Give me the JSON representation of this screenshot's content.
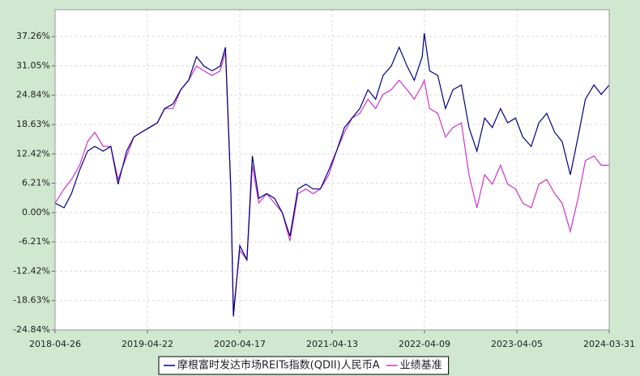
{
  "chart_data": {
    "type": "line",
    "x": [
      "2018-04-26",
      "2018-05-31",
      "2018-06-29",
      "2018-07-31",
      "2018-08-31",
      "2018-09-28",
      "2018-10-31",
      "2018-11-30",
      "2018-12-28",
      "2019-01-31",
      "2019-02-28",
      "2019-03-29",
      "2019-04-30",
      "2019-05-31",
      "2019-06-28",
      "2019-07-31",
      "2019-08-30",
      "2019-09-30",
      "2019-10-31",
      "2019-11-29",
      "2019-12-31",
      "2020-01-31",
      "2020-02-21",
      "2020-03-13",
      "2020-03-23",
      "2020-04-17",
      "2020-05-15",
      "2020-06-05",
      "2020-06-30",
      "2020-07-31",
      "2020-08-31",
      "2020-09-30",
      "2020-10-30",
      "2020-11-30",
      "2020-12-31",
      "2021-01-29",
      "2021-02-26",
      "2021-03-31",
      "2021-04-30",
      "2021-05-31",
      "2021-06-30",
      "2021-07-30",
      "2021-08-31",
      "2021-09-30",
      "2021-10-29",
      "2021-11-30",
      "2021-12-31",
      "2022-01-31",
      "2022-02-28",
      "2022-03-31",
      "2022-04-08",
      "2022-04-29",
      "2022-05-31",
      "2022-06-30",
      "2022-07-29",
      "2022-08-31",
      "2022-09-30",
      "2022-10-31",
      "2022-11-30",
      "2022-12-30",
      "2023-01-31",
      "2023-02-28",
      "2023-03-31",
      "2023-04-28",
      "2023-05-31",
      "2023-06-30",
      "2023-07-31",
      "2023-08-31",
      "2023-09-29",
      "2023-10-31",
      "2023-11-30",
      "2023-12-29",
      "2024-01-31",
      "2024-02-29",
      "2024-03-31"
    ],
    "series": [
      {
        "name": "摩根富时发达市场REITs指数(QDII)人民币A",
        "color": "#000080",
        "values": [
          2,
          1,
          4,
          9,
          13,
          14,
          13,
          14,
          6,
          13,
          16,
          17,
          18,
          19,
          22,
          23,
          26,
          28,
          33,
          31,
          30,
          31,
          35,
          5,
          -22,
          -7,
          -10,
          12,
          3,
          4,
          3,
          0,
          -5,
          5,
          6,
          5,
          5,
          9,
          13,
          18,
          20,
          22,
          26,
          24,
          29,
          31,
          35,
          31,
          28,
          33,
          38,
          30,
          29,
          22,
          26,
          27,
          18,
          13,
          20,
          18,
          22,
          19,
          20,
          16,
          14,
          19,
          21,
          17,
          15,
          8,
          16,
          24,
          27,
          25,
          27
        ]
      },
      {
        "name": "业绩基准",
        "color": "#cc33cc",
        "values": [
          2,
          5,
          7,
          10,
          15,
          17,
          14,
          14,
          7,
          12,
          16,
          17,
          18,
          19,
          22,
          22,
          26,
          28,
          31,
          30,
          29,
          30,
          34,
          5,
          -21,
          -8,
          -10,
          10,
          2,
          4,
          2,
          0,
          -6,
          4,
          5,
          4,
          5,
          8,
          13,
          17,
          20,
          21,
          24,
          22,
          25,
          26,
          28,
          26,
          24,
          27,
          28,
          22,
          21,
          16,
          18,
          19,
          8,
          1,
          8,
          6,
          10,
          6,
          5,
          2,
          1,
          6,
          7,
          4,
          2,
          -4,
          3,
          11,
          12,
          10,
          10
        ]
      }
    ],
    "xlim": [
      "2018-04-26",
      "2024-03-31"
    ],
    "xticks": [
      "2018-04-26",
      "2019-04-22",
      "2020-04-17",
      "2021-04-13",
      "2022-04-09",
      "2023-04-05",
      "2024-03-31"
    ],
    "ylim": [
      -24.84,
      42.94
    ],
    "yticks": [
      {
        "value": -24.84,
        "label": "-24.84%"
      },
      {
        "value": -18.63,
        "label": "-18.63%"
      },
      {
        "value": -12.42,
        "label": "-12.42%"
      },
      {
        "value": -6.21,
        "label": "-6.21%"
      },
      {
        "value": 0,
        "label": "0.00%"
      },
      {
        "value": 6.21,
        "label": "6.21%"
      },
      {
        "value": 12.42,
        "label": "12.42%"
      },
      {
        "value": 18.63,
        "label": "18.63%"
      },
      {
        "value": 24.84,
        "label": "24.84%"
      },
      {
        "value": 31.05,
        "label": "31.05%"
      },
      {
        "value": 37.26,
        "label": "37.26%"
      }
    ],
    "grid": true,
    "legend": "bottom"
  }
}
